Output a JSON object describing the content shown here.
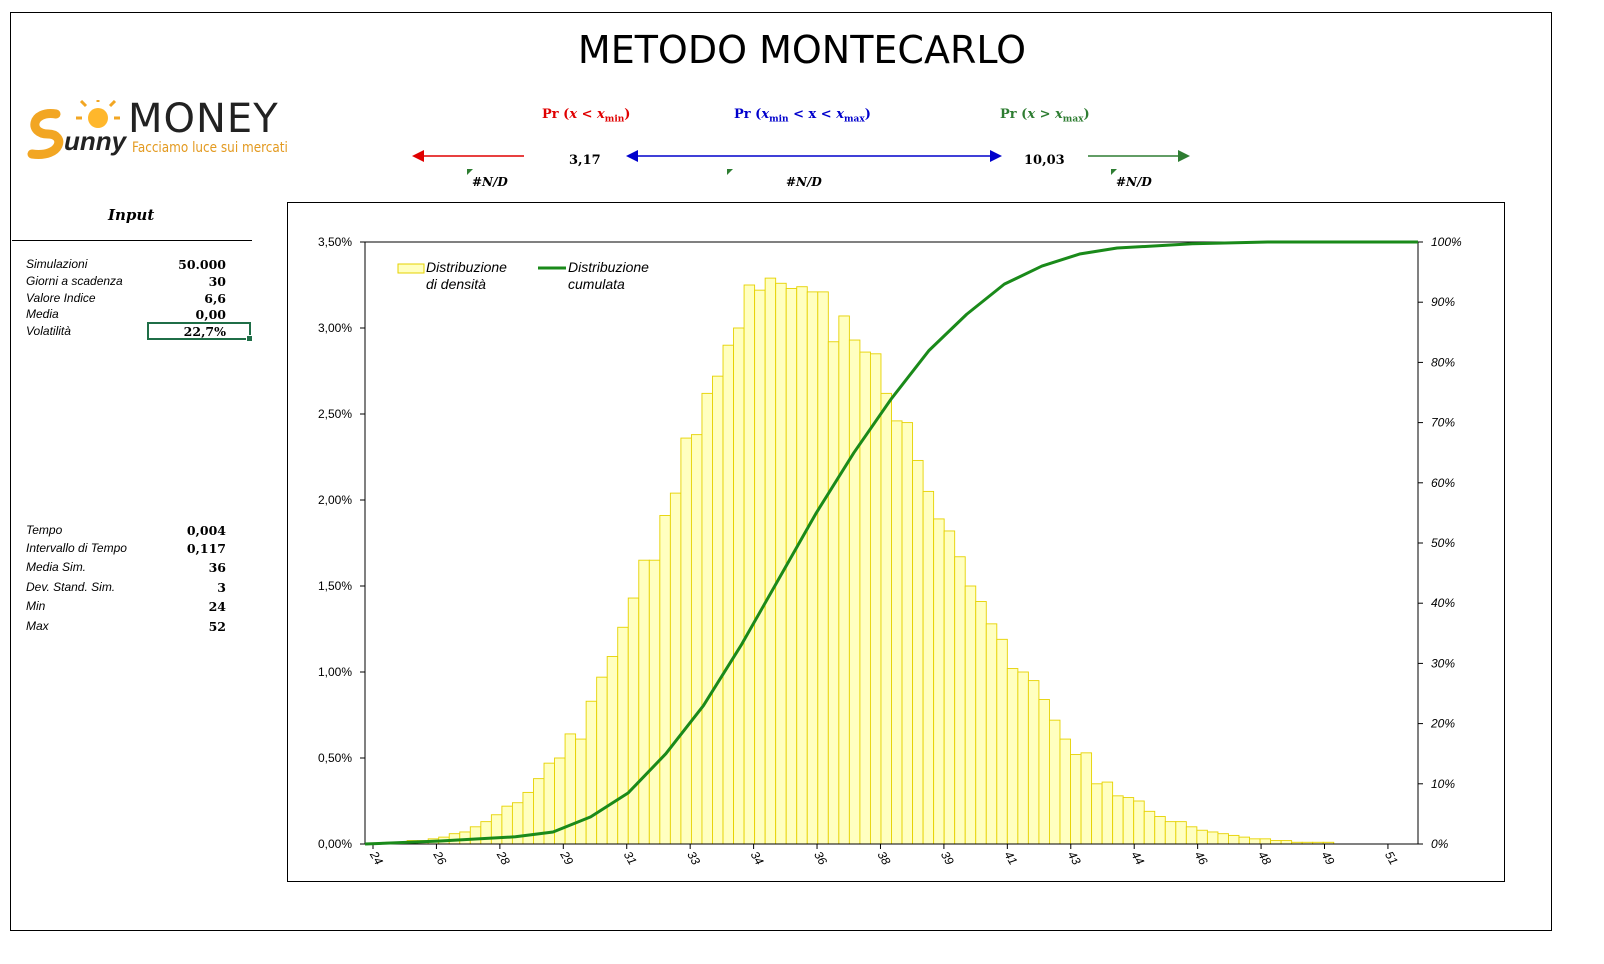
{
  "title": "METODO MONTECARLO",
  "logo": {
    "brand": "MONEY",
    "script": "Sunny",
    "tagline": "Facciamo luce sui mercati"
  },
  "prob": {
    "prefix": "Pr (",
    "min_label": {
      "var": "x",
      "op": " < ",
      "bound": "x",
      "sub": "min",
      "close": ")"
    },
    "mid_label": {
      "bound1": "x",
      "sub1": "min",
      "mid": " < x < ",
      "bound2": "x",
      "sub2": "max",
      "close": ")"
    },
    "max_label": {
      "var": "x",
      "op": " > ",
      "bound": "x",
      "sub": "max",
      "close": ")"
    },
    "xmin_value": "3,17",
    "xmax_value": "10,03",
    "nd_left": "#N/D",
    "nd_mid": "#N/D",
    "nd_right": "#N/D",
    "colors": {
      "min": "#e00000",
      "mid": "#0000cc",
      "max": "#2e7d32"
    }
  },
  "input": {
    "title": "Input",
    "rows": [
      {
        "label": "Simulazioni",
        "value": "50.000"
      },
      {
        "label": "Giorni a scadenza",
        "value": "30"
      },
      {
        "label": "Valore Indice",
        "value": "6,6"
      },
      {
        "label": "Media",
        "value": "0,00"
      },
      {
        "label": "Volatilità",
        "value": "22,7%"
      }
    ]
  },
  "stats": {
    "rows": [
      {
        "label": "Tempo",
        "value": "0,004"
      },
      {
        "label": "Intervallo di Tempo",
        "value": "0,117"
      },
      {
        "label": "Media Sim.",
        "value": "36"
      },
      {
        "label": "Dev. Stand. Sim.",
        "value": "3"
      },
      {
        "label": "Min",
        "value": "24"
      },
      {
        "label": "Max",
        "value": "52"
      }
    ]
  },
  "chart_data": {
    "type": "bar",
    "legend": {
      "placement": "top-left",
      "density_line1": "Distribuzione",
      "density_line2": "di densità",
      "cum_line1": "Distribuzione",
      "cum_line2": "cumulata"
    },
    "colors": {
      "bar_fill": "#ffffc0",
      "bar_stroke": "#e6d200",
      "line": "#1a8a1a"
    },
    "y_left": {
      "ylim": [
        0,
        0.035
      ],
      "ticks": [
        "0,00%",
        "0,50%",
        "1,00%",
        "1,50%",
        "2,00%",
        "2,50%",
        "3,00%",
        "3,50%"
      ]
    },
    "y_right": {
      "ylim": [
        0,
        1
      ],
      "ticks": [
        "0%",
        "10%",
        "20%",
        "30%",
        "40%",
        "50%",
        "60%",
        "70%",
        "80%",
        "90%",
        "100%"
      ]
    },
    "x_ticks": [
      "24",
      "26",
      "28",
      "29",
      "31",
      "33",
      "34",
      "36",
      "38",
      "39",
      "41",
      "43",
      "44",
      "46",
      "48",
      "49",
      "51"
    ],
    "xlim": [
      24,
      52
    ],
    "grid": false,
    "series": [
      {
        "name": "Distribuzione di densità",
        "kind": "bar",
        "values": [
          0.0,
          0.0,
          0.0001,
          0.0001,
          0.0002,
          0.0002,
          0.0003,
          0.0004,
          0.0006,
          0.0007,
          0.001,
          0.0013,
          0.0017,
          0.0022,
          0.0024,
          0.003,
          0.0038,
          0.0047,
          0.005,
          0.0064,
          0.0061,
          0.0083,
          0.0097,
          0.0109,
          0.0126,
          0.0143,
          0.0165,
          0.0165,
          0.0191,
          0.0204,
          0.0236,
          0.0238,
          0.0262,
          0.0272,
          0.029,
          0.03,
          0.0325,
          0.0322,
          0.0329,
          0.0326,
          0.0323,
          0.0324,
          0.0321,
          0.0321,
          0.0292,
          0.0307,
          0.0293,
          0.0286,
          0.0285,
          0.0262,
          0.0246,
          0.0245,
          0.0223,
          0.0205,
          0.0189,
          0.0182,
          0.0167,
          0.015,
          0.0141,
          0.0128,
          0.0119,
          0.0102,
          0.01,
          0.0095,
          0.0084,
          0.0072,
          0.0061,
          0.0052,
          0.0053,
          0.0035,
          0.0036,
          0.0028,
          0.0027,
          0.0025,
          0.0019,
          0.0016,
          0.0013,
          0.0013,
          0.001,
          0.0008,
          0.0007,
          0.0006,
          0.0005,
          0.0004,
          0.0003,
          0.0003,
          0.0002,
          0.0002,
          0.0001,
          0.0001,
          0.0001,
          0.0001,
          0.0,
          0.0,
          0.0,
          0.0,
          0.0,
          0.0,
          0.0,
          0.0
        ]
      },
      {
        "name": "Distribuzione cumulata",
        "kind": "line",
        "axis": "right",
        "points": [
          [
            24,
            0.0
          ],
          [
            26,
            0.005
          ],
          [
            28,
            0.012
          ],
          [
            29,
            0.02
          ],
          [
            30,
            0.045
          ],
          [
            31,
            0.085
          ],
          [
            32,
            0.15
          ],
          [
            33,
            0.23
          ],
          [
            34,
            0.33
          ],
          [
            35,
            0.44
          ],
          [
            36,
            0.55
          ],
          [
            37,
            0.65
          ],
          [
            38,
            0.74
          ],
          [
            39,
            0.82
          ],
          [
            40,
            0.88
          ],
          [
            41,
            0.93
          ],
          [
            42,
            0.96
          ],
          [
            43,
            0.98
          ],
          [
            44,
            0.99
          ],
          [
            46,
            0.997
          ],
          [
            48,
            1.0
          ],
          [
            52,
            1.0
          ]
        ]
      }
    ]
  }
}
